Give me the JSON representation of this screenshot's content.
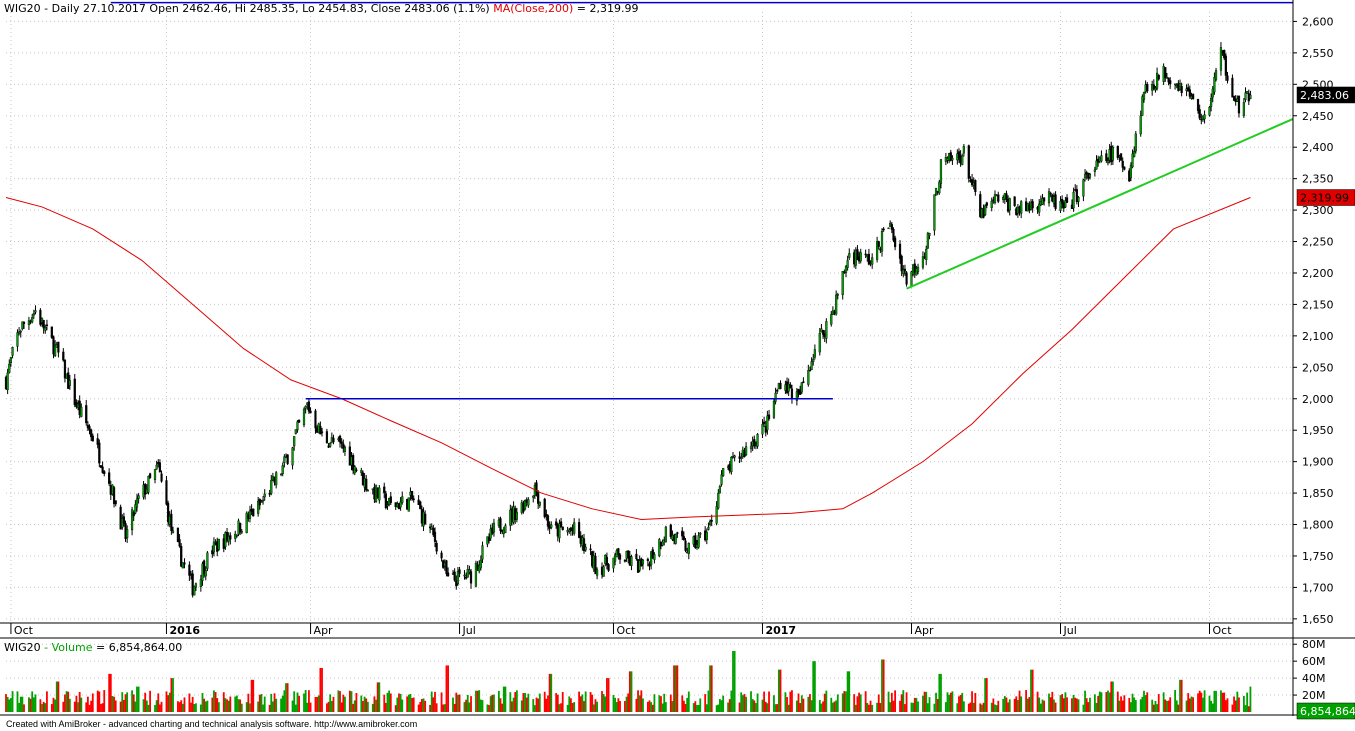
{
  "header": {
    "symbol": "WIG20",
    "info": "- Daily 27.10.2017 Open 2462.46, Hi 2485.35, Lo 2454.83, Close 2483.06 (1.1%)",
    "ma_label": "MA(Close,200)",
    "ma_value": "= 2,319.99"
  },
  "volume_header": {
    "symbol": "WIG20",
    "label": "Volume",
    "value": "= 6,854,864.00"
  },
  "footer": "Created with AmiBroker - advanced charting and technical analysis software. http://www.amibroker.com",
  "badges": {
    "last_close": "2,483.06",
    "last_ma": "2,319.99",
    "last_volume": "6,854,864"
  },
  "colors": {
    "up": "#00a000",
    "down": "#ff0000",
    "ma": "#e00000",
    "trend_line": "#22cc22",
    "horizontal_line": "#0000cc",
    "grid": "#c8c8c8"
  },
  "chart_data": [
    {
      "type": "candlestick",
      "title": "WIG20",
      "y_ticks": [
        "2,600",
        "2,550",
        "2,500",
        "2,450",
        "2,400",
        "2,350",
        "2,300",
        "2,250",
        "2,200",
        "2,150",
        "2,100",
        "2,050",
        "2,000",
        "1,950",
        "1,900",
        "1,850",
        "1,800",
        "1,750",
        "1,700",
        "1,650"
      ],
      "ylim": [
        1650,
        2600
      ],
      "x_ticks": [
        {
          "label": "Oct",
          "date": "2015-10-01",
          "bold": false
        },
        {
          "label": "2016",
          "date": "2016-01-04",
          "bold": true
        },
        {
          "label": "Apr",
          "date": "2016-04-01",
          "bold": false
        },
        {
          "label": "Jul",
          "date": "2016-07-01",
          "bold": false
        },
        {
          "label": "Oct",
          "date": "2016-10-03",
          "bold": false
        },
        {
          "label": "2017",
          "date": "2017-01-02",
          "bold": true
        },
        {
          "label": "Apr",
          "date": "2017-04-03",
          "bold": false
        },
        {
          "label": "Jul",
          "date": "2017-07-03",
          "bold": false
        },
        {
          "label": "Oct",
          "date": "2017-10-02",
          "bold": false
        }
      ],
      "price_path": [
        [
          "2015-09-28",
          2030
        ],
        [
          "2015-10-06",
          2110
        ],
        [
          "2015-10-16",
          2140
        ],
        [
          "2015-10-30",
          2070
        ],
        [
          "2015-11-10",
          1990
        ],
        [
          "2015-11-20",
          1940
        ],
        [
          "2015-12-01",
          1860
        ],
        [
          "2015-12-10",
          1780
        ],
        [
          "2015-12-18",
          1840
        ],
        [
          "2015-12-30",
          1890
        ],
        [
          "2016-01-08",
          1780
        ],
        [
          "2016-01-20",
          1700
        ],
        [
          "2016-02-01",
          1760
        ],
        [
          "2016-02-15",
          1790
        ],
        [
          "2016-03-01",
          1830
        ],
        [
          "2016-03-15",
          1890
        ],
        [
          "2016-03-30",
          1990
        ],
        [
          "2016-04-08",
          1940
        ],
        [
          "2016-04-22",
          1920
        ],
        [
          "2016-05-06",
          1860
        ],
        [
          "2016-05-20",
          1830
        ],
        [
          "2016-06-03",
          1840
        ],
        [
          "2016-06-17",
          1770
        ],
        [
          "2016-06-24",
          1710
        ],
        [
          "2016-07-08",
          1720
        ],
        [
          "2016-07-22",
          1790
        ],
        [
          "2016-08-08",
          1830
        ],
        [
          "2016-08-16",
          1860
        ],
        [
          "2016-08-26",
          1790
        ],
        [
          "2016-09-09",
          1790
        ],
        [
          "2016-09-23",
          1730
        ],
        [
          "2016-10-07",
          1750
        ],
        [
          "2016-10-21",
          1730
        ],
        [
          "2016-11-04",
          1790
        ],
        [
          "2016-11-18",
          1760
        ],
        [
          "2016-11-30",
          1790
        ],
        [
          "2016-12-09",
          1880
        ],
        [
          "2016-12-23",
          1920
        ],
        [
          "2017-01-05",
          1960
        ],
        [
          "2017-01-13",
          2030
        ],
        [
          "2017-01-24",
          2000
        ],
        [
          "2017-02-03",
          2080
        ],
        [
          "2017-02-14",
          2140
        ],
        [
          "2017-02-24",
          2230
        ],
        [
          "2017-03-10",
          2220
        ],
        [
          "2017-03-20",
          2280
        ],
        [
          "2017-03-31",
          2190
        ],
        [
          "2017-04-12",
          2240
        ],
        [
          "2017-04-21",
          2370
        ],
        [
          "2017-05-05",
          2390
        ],
        [
          "2017-05-15",
          2290
        ],
        [
          "2017-05-26",
          2320
        ],
        [
          "2017-06-09",
          2300
        ],
        [
          "2017-06-23",
          2320
        ],
        [
          "2017-07-07",
          2300
        ],
        [
          "2017-07-21",
          2360
        ],
        [
          "2017-08-04",
          2390
        ],
        [
          "2017-08-14",
          2360
        ],
        [
          "2017-08-23",
          2490
        ],
        [
          "2017-09-05",
          2520
        ],
        [
          "2017-09-18",
          2490
        ],
        [
          "2017-09-29",
          2440
        ],
        [
          "2017-10-09",
          2550
        ],
        [
          "2017-10-20",
          2460
        ],
        [
          "2017-10-27",
          2483
        ]
      ],
      "ma_path": [
        [
          "2015-09-28",
          2320
        ],
        [
          "2015-10-20",
          2305
        ],
        [
          "2015-11-20",
          2270
        ],
        [
          "2015-12-20",
          2220
        ],
        [
          "2016-01-20",
          2150
        ],
        [
          "2016-02-20",
          2080
        ],
        [
          "2016-03-20",
          2030
        ],
        [
          "2016-04-20",
          2000
        ],
        [
          "2016-05-20",
          1965
        ],
        [
          "2016-06-20",
          1930
        ],
        [
          "2016-07-20",
          1890
        ],
        [
          "2016-08-20",
          1850
        ],
        [
          "2016-09-20",
          1825
        ],
        [
          "2016-10-20",
          1808
        ],
        [
          "2016-11-20",
          1812
        ],
        [
          "2016-12-20",
          1815
        ],
        [
          "2017-01-20",
          1818
        ],
        [
          "2017-02-20",
          1825
        ],
        [
          "2017-03-10",
          1850
        ],
        [
          "2017-04-10",
          1900
        ],
        [
          "2017-05-10",
          1960
        ],
        [
          "2017-06-10",
          2040
        ],
        [
          "2017-07-10",
          2110
        ],
        [
          "2017-08-10",
          2190
        ],
        [
          "2017-09-10",
          2270
        ],
        [
          "2017-10-27",
          2320
        ]
      ],
      "ma_last": 2319.99,
      "last_close": 2483.06,
      "horizontal_lines": [
        {
          "from": "2016-03-29",
          "to": "2017-02-14",
          "value": 2000
        },
        {
          "from": "2015-12-01",
          "to": "2017-11-22",
          "value": 2630
        }
      ],
      "trend_line": {
        "from": [
          "2017-03-31",
          2175
        ],
        "to": [
          "2017-11-22",
          2445
        ]
      },
      "grid": true
    },
    {
      "type": "bar",
      "title": "Volume",
      "y_ticks": [
        "80M",
        "60M",
        "40M",
        "20M"
      ],
      "ylim": [
        0,
        85
      ],
      "volume_peaks": [
        [
          "2015-10-30",
          36
        ],
        [
          "2015-11-30",
          45
        ],
        [
          "2015-12-18",
          30
        ],
        [
          "2016-01-08",
          40
        ],
        [
          "2016-02-26",
          38
        ],
        [
          "2016-03-18",
          34
        ],
        [
          "2016-04-08",
          52
        ],
        [
          "2016-05-13",
          35
        ],
        [
          "2016-06-24",
          55
        ],
        [
          "2016-07-29",
          30
        ],
        [
          "2016-08-26",
          45
        ],
        [
          "2016-09-30",
          40
        ],
        [
          "2016-10-14",
          48
        ],
        [
          "2016-11-10",
          55
        ],
        [
          "2016-12-02",
          55
        ],
        [
          "2016-12-16",
          72
        ],
        [
          "2017-01-13",
          50
        ],
        [
          "2017-02-03",
          60
        ],
        [
          "2017-02-24",
          48
        ],
        [
          "2017-03-17",
          62
        ],
        [
          "2017-04-21",
          45
        ],
        [
          "2017-05-19",
          40
        ],
        [
          "2017-06-16",
          50
        ],
        [
          "2017-08-04",
          36
        ],
        [
          "2017-09-15",
          38
        ],
        [
          "2017-10-06",
          25
        ],
        [
          "2017-10-27",
          6.85
        ]
      ]
    }
  ]
}
